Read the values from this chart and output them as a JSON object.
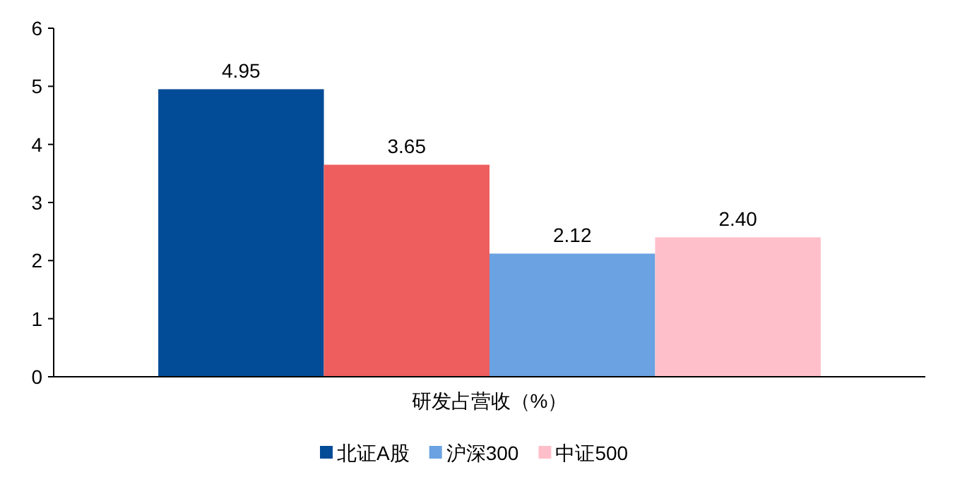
{
  "chart_data": {
    "type": "bar",
    "categories": [
      "研发占营收（%）"
    ],
    "series": [
      {
        "name": "北证A股",
        "color": "#024b96",
        "values": [
          4.95
        ],
        "value_labels": [
          "4.95"
        ]
      },
      {
        "color": "#ee5e5e",
        "values": [
          3.65
        ],
        "value_labels": [
          "3.65"
        ]
      },
      {
        "name": "沪深300",
        "color": "#6aa2e2",
        "values": [
          2.12
        ],
        "value_labels": [
          "2.12"
        ]
      },
      {
        "name": "中证500",
        "color": "#ffbfca",
        "values": [
          2.4
        ],
        "value_labels": [
          "2.40"
        ]
      }
    ],
    "ylim": [
      0,
      6
    ],
    "yticks": [
      0,
      1,
      2,
      3,
      4,
      5,
      6
    ],
    "legend": "bottom"
  }
}
